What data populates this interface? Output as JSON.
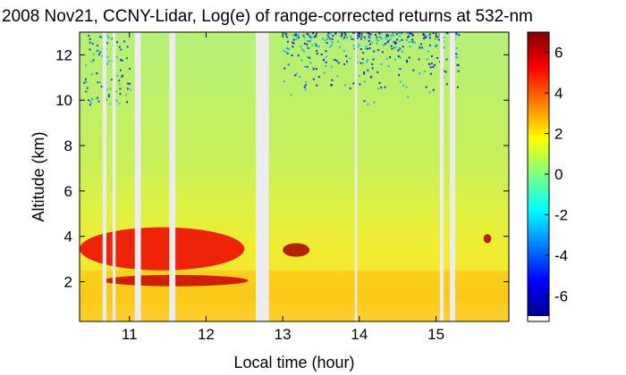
{
  "chart_data": {
    "type": "heatmap",
    "title": "2008 Nov21, CCNY-Lidar, Log(e) of range-corrected returns at 532-nm",
    "xlabel": "Local time (hour)",
    "ylabel": "Altitude (km)",
    "xlim": [
      10.35,
      15.95
    ],
    "ylim": [
      0.25,
      13.0
    ],
    "x_ticks": [
      11,
      12,
      13,
      14,
      15
    ],
    "y_ticks": [
      2,
      4,
      6,
      8,
      10,
      12
    ],
    "colorbar": {
      "min": -7,
      "max": 7,
      "ticks": [
        -6,
        -4,
        -2,
        0,
        2,
        4,
        6
      ],
      "colormap": "jet"
    },
    "data_gaps_hours": [
      [
        10.65,
        10.7
      ],
      [
        10.78,
        10.82
      ],
      [
        11.07,
        11.15
      ],
      [
        11.52,
        11.6
      ],
      [
        12.65,
        12.82
      ],
      [
        13.94,
        13.97
      ],
      [
        15.05,
        15.1
      ],
      [
        15.18,
        15.25
      ]
    ],
    "features": [
      {
        "label": "boundary layer",
        "x_range": [
          10.35,
          15.95
        ],
        "alt_range": [
          0.25,
          2.5
        ],
        "value": 2.0
      },
      {
        "label": "aerosol layer",
        "x_range": [
          10.35,
          12.5
        ],
        "alt_range": [
          2.5,
          4.4
        ],
        "value": 5.5
      },
      {
        "label": "aerosol layer",
        "x_range": [
          10.65,
          12.55
        ],
        "alt_range": [
          1.8,
          2.3
        ],
        "value": 6.0
      },
      {
        "label": "cloud",
        "x_range": [
          13.0,
          13.35
        ],
        "alt_range": [
          3.1,
          3.7
        ],
        "value": 6.5
      },
      {
        "label": "cloud",
        "x_range": [
          15.62,
          15.72
        ],
        "alt_range": [
          3.7,
          4.1
        ],
        "value": 6.5
      },
      {
        "label": "noisy upper region",
        "x_range": [
          13.0,
          15.3
        ],
        "alt_range": [
          9.5,
          13.0
        ],
        "value": -5.0
      }
    ]
  }
}
